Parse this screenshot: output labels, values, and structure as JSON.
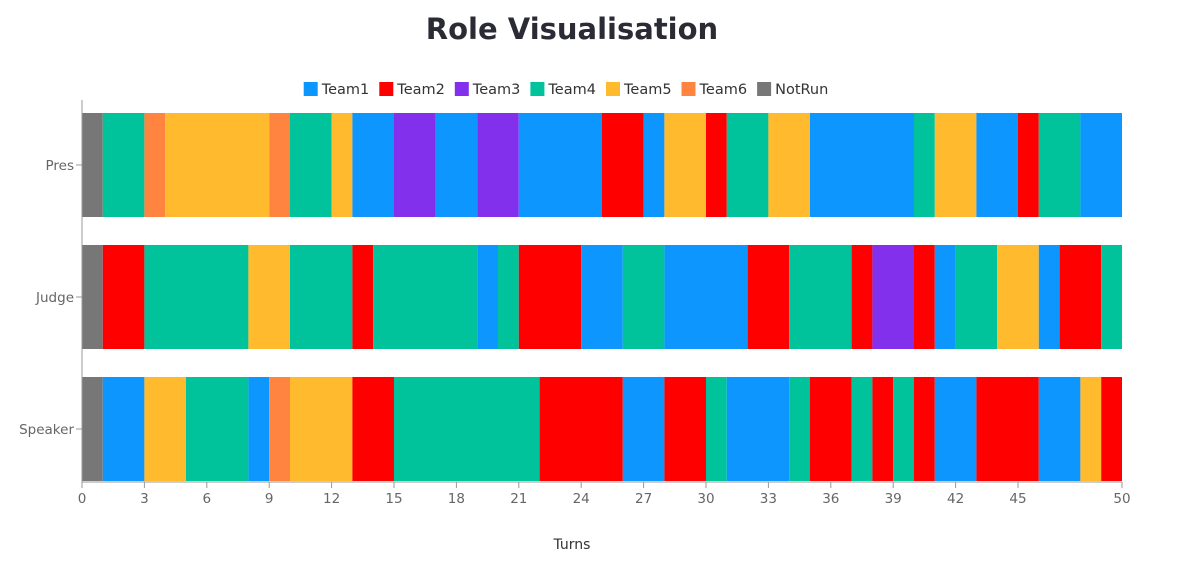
{
  "chart_data": {
    "type": "bar",
    "orientation": "horizontal",
    "stacked": true,
    "title": "Role Visualisation",
    "xlabel": "Turns",
    "ylabel": "",
    "xlim": [
      0,
      50
    ],
    "x_ticks": [
      0,
      3,
      6,
      9,
      12,
      15,
      18,
      21,
      24,
      27,
      30,
      33,
      36,
      39,
      42,
      45,
      50
    ],
    "categories": [
      "Pres",
      "Judge",
      "Speaker"
    ],
    "legend_position": "top-center",
    "grid": false,
    "teams": [
      {
        "name": "Team1",
        "color": "#0d96fe"
      },
      {
        "name": "Team2",
        "color": "#ff0000"
      },
      {
        "name": "Team3",
        "color": "#8330ec"
      },
      {
        "name": "Team4",
        "color": "#00c39c"
      },
      {
        "name": "Team5",
        "color": "#ffba2d"
      },
      {
        "name": "Team6",
        "color": "#ff8440"
      },
      {
        "name": "NotRun",
        "color": "#777777"
      }
    ],
    "rows": [
      {
        "category": "Pres",
        "segments": [
          {
            "team": "NotRun",
            "start": 0,
            "end": 1
          },
          {
            "team": "Team4",
            "start": 1,
            "end": 3
          },
          {
            "team": "Team6",
            "start": 3,
            "end": 4
          },
          {
            "team": "Team5",
            "start": 4,
            "end": 9
          },
          {
            "team": "Team6",
            "start": 9,
            "end": 10
          },
          {
            "team": "Team4",
            "start": 10,
            "end": 12
          },
          {
            "team": "Team5",
            "start": 12,
            "end": 13
          },
          {
            "team": "Team1",
            "start": 13,
            "end": 15
          },
          {
            "team": "Team3",
            "start": 15,
            "end": 17
          },
          {
            "team": "Team1",
            "start": 17,
            "end": 19
          },
          {
            "team": "Team3",
            "start": 19,
            "end": 21
          },
          {
            "team": "Team1",
            "start": 21,
            "end": 25
          },
          {
            "team": "Team2",
            "start": 25,
            "end": 27
          },
          {
            "team": "Team1",
            "start": 27,
            "end": 28
          },
          {
            "team": "Team5",
            "start": 28,
            "end": 30
          },
          {
            "team": "Team2",
            "start": 30,
            "end": 31
          },
          {
            "team": "Team4",
            "start": 31,
            "end": 33
          },
          {
            "team": "Team5",
            "start": 33,
            "end": 35
          },
          {
            "team": "Team1",
            "start": 35,
            "end": 40
          },
          {
            "team": "Team4",
            "start": 40,
            "end": 41
          },
          {
            "team": "Team5",
            "start": 41,
            "end": 43
          },
          {
            "team": "Team1",
            "start": 43,
            "end": 45
          },
          {
            "team": "Team2",
            "start": 45,
            "end": 46
          },
          {
            "team": "Team4",
            "start": 46,
            "end": 48
          },
          {
            "team": "Team1",
            "start": 48,
            "end": 50
          }
        ]
      },
      {
        "category": "Judge",
        "segments": [
          {
            "team": "NotRun",
            "start": 0,
            "end": 1
          },
          {
            "team": "Team2",
            "start": 1,
            "end": 3
          },
          {
            "team": "Team4",
            "start": 3,
            "end": 8
          },
          {
            "team": "Team5",
            "start": 8,
            "end": 10
          },
          {
            "team": "Team4",
            "start": 10,
            "end": 13
          },
          {
            "team": "Team2",
            "start": 13,
            "end": 14
          },
          {
            "team": "Team4",
            "start": 14,
            "end": 19
          },
          {
            "team": "Team1",
            "start": 19,
            "end": 20
          },
          {
            "team": "Team4",
            "start": 20,
            "end": 21
          },
          {
            "team": "Team2",
            "start": 21,
            "end": 24
          },
          {
            "team": "Team1",
            "start": 24,
            "end": 26
          },
          {
            "team": "Team4",
            "start": 26,
            "end": 28
          },
          {
            "team": "Team1",
            "start": 28,
            "end": 32
          },
          {
            "team": "Team2",
            "start": 32,
            "end": 34
          },
          {
            "team": "Team4",
            "start": 34,
            "end": 37
          },
          {
            "team": "Team2",
            "start": 37,
            "end": 38
          },
          {
            "team": "Team3",
            "start": 38,
            "end": 40
          },
          {
            "team": "Team2",
            "start": 40,
            "end": 41
          },
          {
            "team": "Team1",
            "start": 41,
            "end": 42
          },
          {
            "team": "Team4",
            "start": 42,
            "end": 44
          },
          {
            "team": "Team5",
            "start": 44,
            "end": 46
          },
          {
            "team": "Team1",
            "start": 46,
            "end": 47
          },
          {
            "team": "Team2",
            "start": 47,
            "end": 49
          },
          {
            "team": "Team4",
            "start": 49,
            "end": 50
          }
        ]
      },
      {
        "category": "Speaker",
        "segments": [
          {
            "team": "NotRun",
            "start": 0,
            "end": 1
          },
          {
            "team": "Team1",
            "start": 1,
            "end": 3
          },
          {
            "team": "Team5",
            "start": 3,
            "end": 5
          },
          {
            "team": "Team4",
            "start": 5,
            "end": 8
          },
          {
            "team": "Team1",
            "start": 8,
            "end": 9
          },
          {
            "team": "Team6",
            "start": 9,
            "end": 10
          },
          {
            "team": "Team5",
            "start": 10,
            "end": 13
          },
          {
            "team": "Team2",
            "start": 13,
            "end": 15
          },
          {
            "team": "Team4",
            "start": 15,
            "end": 22
          },
          {
            "team": "Team2",
            "start": 22,
            "end": 26
          },
          {
            "team": "Team1",
            "start": 26,
            "end": 28
          },
          {
            "team": "Team2",
            "start": 28,
            "end": 30
          },
          {
            "team": "Team4",
            "start": 30,
            "end": 31
          },
          {
            "team": "Team1",
            "start": 31,
            "end": 34
          },
          {
            "team": "Team4",
            "start": 34,
            "end": 35
          },
          {
            "team": "Team2",
            "start": 35,
            "end": 37
          },
          {
            "team": "Team4",
            "start": 37,
            "end": 38
          },
          {
            "team": "Team2",
            "start": 38,
            "end": 39
          },
          {
            "team": "Team4",
            "start": 39,
            "end": 40
          },
          {
            "team": "Team2",
            "start": 40,
            "end": 41
          },
          {
            "team": "Team1",
            "start": 41,
            "end": 43
          },
          {
            "team": "Team2",
            "start": 43,
            "end": 46
          },
          {
            "team": "Team1",
            "start": 46,
            "end": 48
          },
          {
            "team": "Team5",
            "start": 48,
            "end": 49
          },
          {
            "team": "Team2",
            "start": 49,
            "end": 50
          }
        ]
      }
    ]
  }
}
